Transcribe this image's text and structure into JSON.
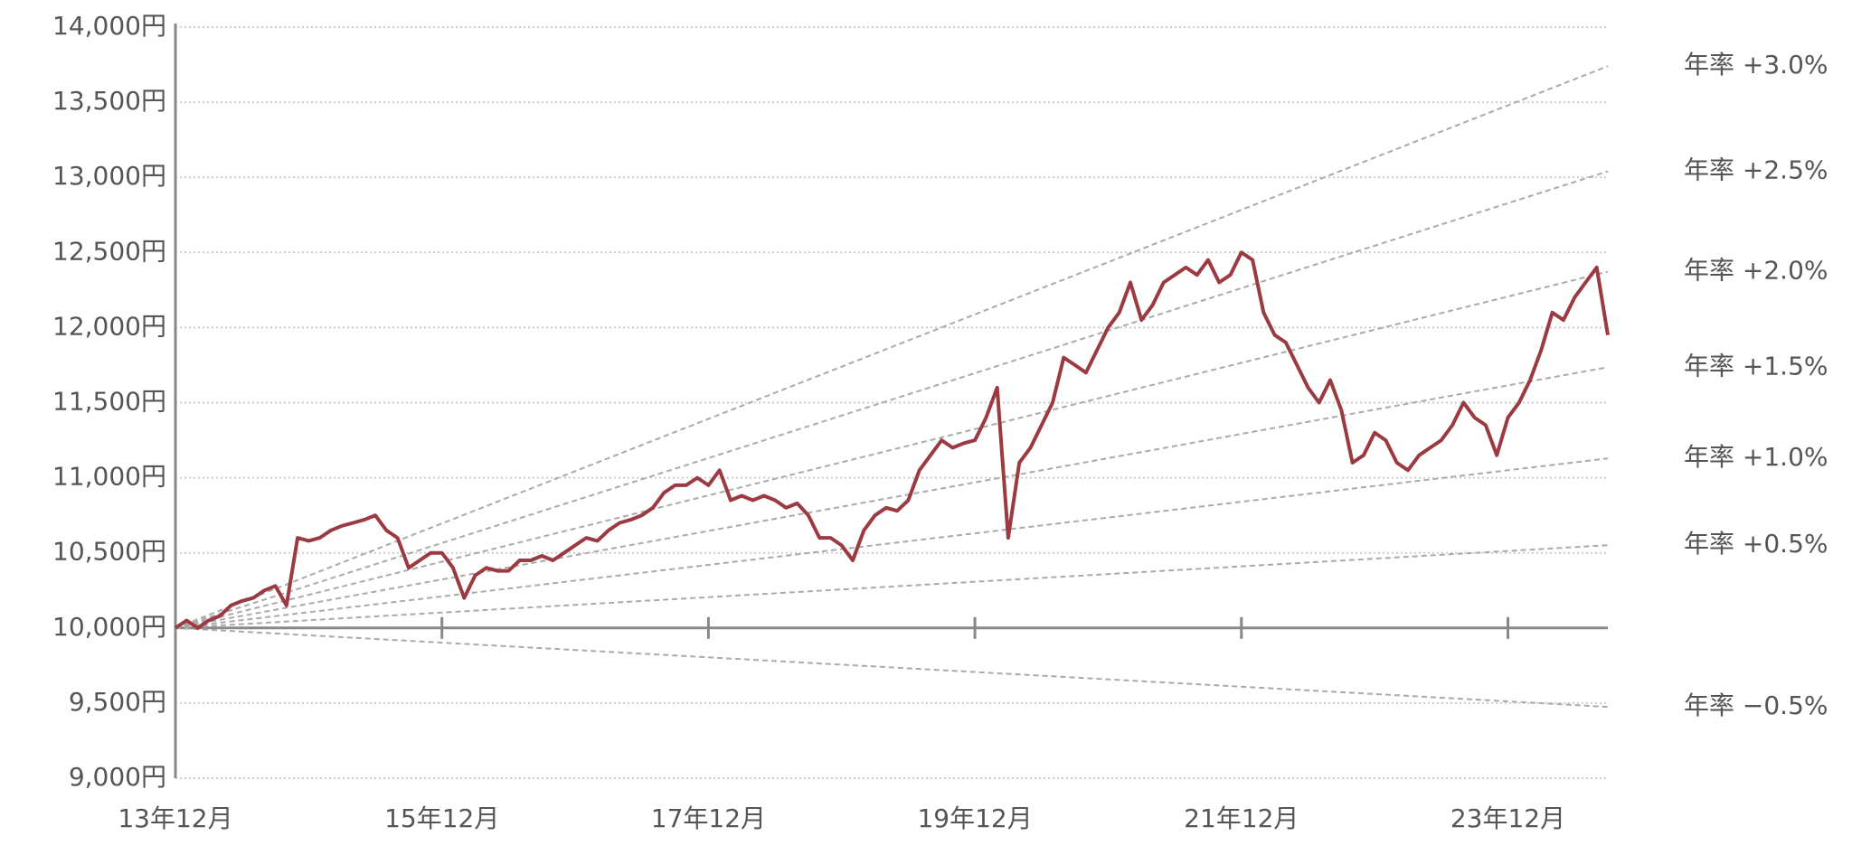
{
  "chart_data": {
    "type": "line",
    "x": [
      "2013-12",
      "2014-01",
      "2014-02",
      "2014-03",
      "2014-04",
      "2014-05",
      "2014-06",
      "2014-07",
      "2014-08",
      "2014-09",
      "2014-10",
      "2014-11",
      "2014-12",
      "2015-01",
      "2015-02",
      "2015-03",
      "2015-04",
      "2015-05",
      "2015-06",
      "2015-07",
      "2015-08",
      "2015-09",
      "2015-10",
      "2015-11",
      "2015-12",
      "2016-01",
      "2016-02",
      "2016-03",
      "2016-04",
      "2016-05",
      "2016-06",
      "2016-07",
      "2016-08",
      "2016-09",
      "2016-10",
      "2016-11",
      "2016-12",
      "2017-01",
      "2017-02",
      "2017-03",
      "2017-04",
      "2017-05",
      "2017-06",
      "2017-07",
      "2017-08",
      "2017-09",
      "2017-10",
      "2017-11",
      "2017-12",
      "2018-01",
      "2018-02",
      "2018-03",
      "2018-04",
      "2018-05",
      "2018-06",
      "2018-07",
      "2018-08",
      "2018-09",
      "2018-10",
      "2018-11",
      "2018-12",
      "2019-01",
      "2019-02",
      "2019-03",
      "2019-04",
      "2019-05",
      "2019-06",
      "2019-07",
      "2019-08",
      "2019-09",
      "2019-10",
      "2019-11",
      "2019-12",
      "2020-01",
      "2020-02",
      "2020-03",
      "2020-04",
      "2020-05",
      "2020-06",
      "2020-07",
      "2020-08",
      "2020-09",
      "2020-10",
      "2020-11",
      "2020-12",
      "2021-01",
      "2021-02",
      "2021-03",
      "2021-04",
      "2021-05",
      "2021-06",
      "2021-07",
      "2021-08",
      "2021-09",
      "2021-10",
      "2021-11",
      "2021-12",
      "2022-01",
      "2022-02",
      "2022-03",
      "2022-04",
      "2022-05",
      "2022-06",
      "2022-07",
      "2022-08",
      "2022-09",
      "2022-10",
      "2022-11",
      "2022-12",
      "2023-01",
      "2023-02",
      "2023-03",
      "2023-04",
      "2023-05",
      "2023-06",
      "2023-07",
      "2023-08",
      "2023-09",
      "2023-10",
      "2023-11",
      "2023-12",
      "2024-01",
      "2024-02",
      "2024-03",
      "2024-04",
      "2024-05",
      "2024-06",
      "2024-07",
      "2024-08",
      "2024-09"
    ],
    "series": [
      {
        "color": "#9b3a40",
        "values": [
          10000,
          10050,
          10000,
          10050,
          10080,
          10150,
          10180,
          10200,
          10250,
          10280,
          10150,
          10600,
          10580,
          10600,
          10650,
          10680,
          10700,
          10720,
          10750,
          10650,
          10600,
          10400,
          10450,
          10500,
          10500,
          10400,
          10200,
          10350,
          10400,
          10380,
          10380,
          10450,
          10450,
          10480,
          10450,
          10500,
          10550,
          10600,
          10580,
          10650,
          10700,
          10720,
          10750,
          10800,
          10900,
          10950,
          10950,
          11000,
          10950,
          11050,
          10850,
          10880,
          10850,
          10880,
          10850,
          10800,
          10830,
          10750,
          10600,
          10600,
          10550,
          10450,
          10650,
          10750,
          10800,
          10780,
          10850,
          11050,
          11150,
          11250,
          11200,
          11230,
          11250,
          11400,
          11600,
          10600,
          11100,
          11200,
          11350,
          11500,
          11800,
          11750,
          11700,
          11850,
          12000,
          12100,
          12300,
          12050,
          12150,
          12300,
          12350,
          12400,
          12350,
          12450,
          12300,
          12350,
          12500,
          12450,
          12100,
          11950,
          11900,
          11750,
          11600,
          11500,
          11650,
          11450,
          11100,
          11150,
          11300,
          11250,
          11100,
          11050,
          11150,
          11200,
          11250,
          11350,
          11500,
          11400,
          11350,
          11150,
          11400,
          11500,
          11650,
          11850,
          12100,
          12050,
          12200,
          12300,
          12400,
          11950
        ]
      }
    ],
    "reference_lines": [
      {
        "name": "年率 +3.0%",
        "x": [
          "2013-12",
          "2024-09"
        ],
        "values": [
          10000,
          13740
        ]
      },
      {
        "name": "年率 +2.5%",
        "x": [
          "2013-12",
          "2024-09"
        ],
        "values": [
          10000,
          13040
        ]
      },
      {
        "name": "年率 +2.0%",
        "x": [
          "2013-12",
          "2024-09"
        ],
        "values": [
          10000,
          12372
        ]
      },
      {
        "name": "年率 +1.5%",
        "x": [
          "2013-12",
          "2024-09"
        ],
        "values": [
          10000,
          11736
        ]
      },
      {
        "name": "年率 +1.0%",
        "x": [
          "2013-12",
          "2024-09"
        ],
        "values": [
          10000,
          11129
        ]
      },
      {
        "name": "年率 +0.5%",
        "x": [
          "2013-12",
          "2024-09"
        ],
        "values": [
          10000,
          10551
        ]
      },
      {
        "name": "年率 −0.5%",
        "x": [
          "2013-12",
          "2024-09"
        ],
        "values": [
          10000,
          9475
        ]
      }
    ],
    "reference_color": "#aaaaaa",
    "xlim": [
      "2013-12",
      "2024-09"
    ],
    "xticks": [
      {
        "value": "2013-12",
        "label": "13年12月"
      },
      {
        "value": "2015-12",
        "label": "15年12月"
      },
      {
        "value": "2017-12",
        "label": "17年12月"
      },
      {
        "value": "2019-12",
        "label": "19年12月"
      },
      {
        "value": "2021-12",
        "label": "21年12月"
      },
      {
        "value": "2023-12",
        "label": "23年12月"
      }
    ],
    "ylim": [
      9000,
      14000
    ],
    "yticks": [
      {
        "value": 9000,
        "label": "9,000円"
      },
      {
        "value": 9500,
        "label": "9,500円"
      },
      {
        "value": 10000,
        "label": "10,000円"
      },
      {
        "value": 10500,
        "label": "10,500円"
      },
      {
        "value": 11000,
        "label": "11,000円"
      },
      {
        "value": 11500,
        "label": "11,500円"
      },
      {
        "value": 12000,
        "label": "12,000円"
      },
      {
        "value": 12500,
        "label": "12,500円"
      },
      {
        "value": 13000,
        "label": "13,000円"
      },
      {
        "value": 13500,
        "label": "13,500円"
      },
      {
        "value": 14000,
        "label": "14,000円"
      }
    ],
    "x_axis_at": 10000,
    "grid": true
  }
}
